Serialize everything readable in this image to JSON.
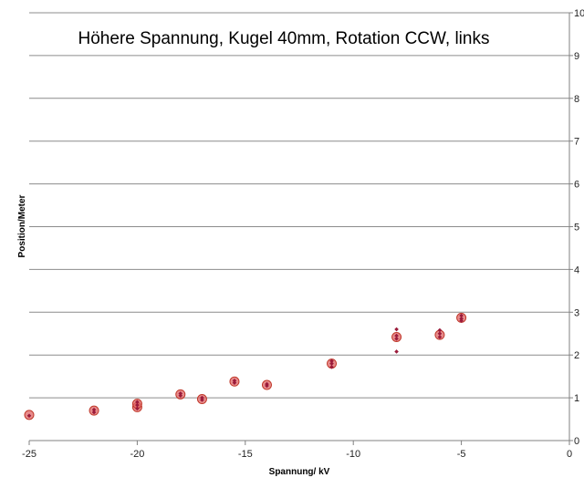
{
  "chart_data": {
    "type": "scatter",
    "title": "Höhere Spannung, Kugel 40mm, Rotation CCW, links",
    "xlabel": "Spannung/ kV",
    "ylabel": "Position/Meter",
    "xlim": [
      -25,
      0
    ],
    "ylim": [
      0,
      10
    ],
    "x_ticks": [
      "-25",
      "-20",
      "-15",
      "-10",
      "-5",
      "0"
    ],
    "y_ticks": [
      "0",
      "1",
      "2",
      "3",
      "4",
      "5",
      "6",
      "7",
      "8",
      "9",
      "10"
    ],
    "y_axis_position": "right",
    "grid": "horizontal",
    "series": [
      {
        "marker": "large-circle",
        "color": "#e06666",
        "points": [
          [
            -25,
            0.6
          ],
          [
            -22,
            0.7
          ],
          [
            -20,
            0.78
          ],
          [
            -20,
            0.86
          ],
          [
            -18,
            1.08
          ],
          [
            -17,
            0.97
          ],
          [
            -15.5,
            1.38
          ],
          [
            -14,
            1.3
          ],
          [
            -11,
            1.8
          ],
          [
            -8,
            2.42
          ],
          [
            -6,
            2.47
          ],
          [
            -5,
            2.87
          ]
        ]
      },
      {
        "marker": "small-diamond",
        "color": "#9b1b3a",
        "points": [
          [
            -25,
            0.58
          ],
          [
            -22,
            0.72
          ],
          [
            -22,
            0.66
          ],
          [
            -20,
            0.75
          ],
          [
            -20,
            0.83
          ],
          [
            -20,
            0.9
          ],
          [
            -18,
            1.05
          ],
          [
            -18,
            1.1
          ],
          [
            -17,
            0.95
          ],
          [
            -17,
            1.0
          ],
          [
            -15.5,
            1.35
          ],
          [
            -15.5,
            1.4
          ],
          [
            -14,
            1.28
          ],
          [
            -14,
            1.32
          ],
          [
            -11,
            1.72
          ],
          [
            -11,
            1.8
          ],
          [
            -11,
            1.86
          ],
          [
            -8,
            2.6
          ],
          [
            -8,
            2.45
          ],
          [
            -8,
            2.38
          ],
          [
            -8,
            2.08
          ],
          [
            -6,
            2.58
          ],
          [
            -6,
            2.5
          ],
          [
            -6,
            2.42
          ],
          [
            -5,
            2.92
          ],
          [
            -5,
            2.85
          ],
          [
            -5,
            2.8
          ]
        ]
      }
    ]
  }
}
